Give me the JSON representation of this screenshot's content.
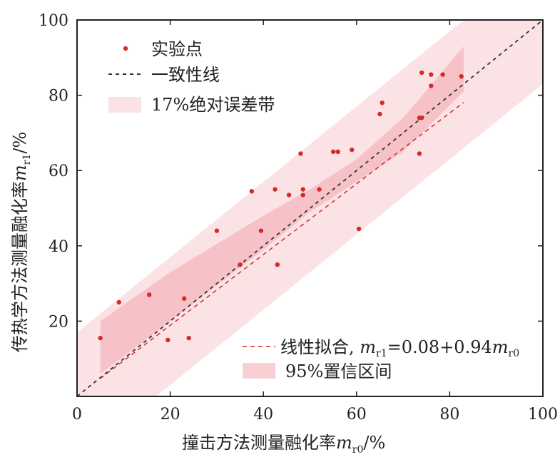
{
  "chart_data": {
    "type": "scatter",
    "xlabel_main": "撞击方法测量融化率",
    "xlabel_var": "m",
    "xlabel_sub": "r0",
    "xlabel_unit": "/%",
    "ylabel_main": "传热学方法测量融化率",
    "ylabel_var": "m",
    "ylabel_sub": "r1",
    "ylabel_unit": "/%",
    "xlim": [
      0,
      100
    ],
    "ylim": [
      0,
      100
    ],
    "xticks": [
      0,
      20,
      40,
      60,
      80,
      100
    ],
    "yticks": [
      20,
      40,
      60,
      80,
      100
    ],
    "legend_top": {
      "points": "实验点",
      "identity": "一致性线",
      "band": "17%绝对误差带"
    },
    "legend_bottom": {
      "fit_prefix": "线性拟合, ",
      "fit_m": "m",
      "fit_sub1": "r1",
      "fit_mid": "=0.08+0.94",
      "fit_m2": "m",
      "fit_sub2": "r0",
      "ci": "95%置信区间"
    },
    "fit": {
      "intercept": 0.08,
      "slope": 0.94,
      "x_range": [
        5,
        83
      ]
    },
    "error_band_abs": 17,
    "ci_band": {
      "x": [
        5,
        20,
        40,
        50,
        60,
        70,
        83
      ],
      "lower": [
        6,
        20,
        39,
        49,
        57,
        65,
        81
      ],
      "upper": [
        20,
        33,
        48,
        55,
        63,
        74,
        93
      ]
    },
    "points": [
      [
        5,
        15.5
      ],
      [
        9,
        25
      ],
      [
        15.5,
        27
      ],
      [
        19.5,
        15
      ],
      [
        23,
        26
      ],
      [
        24,
        15.5
      ],
      [
        30,
        44
      ],
      [
        35,
        35
      ],
      [
        37.5,
        54.5
      ],
      [
        39.5,
        44
      ],
      [
        42.5,
        55
      ],
      [
        43,
        35
      ],
      [
        45.5,
        53.5
      ],
      [
        48,
        64.5
      ],
      [
        48.5,
        53.5
      ],
      [
        48.5,
        55
      ],
      [
        52,
        55
      ],
      [
        55,
        65
      ],
      [
        56,
        65
      ],
      [
        59,
        65.5
      ],
      [
        60.5,
        44.5
      ],
      [
        65,
        75
      ],
      [
        65.5,
        78
      ],
      [
        73.5,
        74
      ],
      [
        73.5,
        64.5
      ],
      [
        74,
        74
      ],
      [
        74,
        86
      ],
      [
        76,
        85.5
      ],
      [
        76,
        82.5
      ],
      [
        78.5,
        85.5
      ],
      [
        82.5,
        85
      ]
    ],
    "colors": {
      "point": "#d62a2a",
      "fit_line": "#d62a2a",
      "identity_line": "#333333",
      "error_band": "#fbe3e5",
      "ci_band": "#f2a8ae"
    }
  }
}
